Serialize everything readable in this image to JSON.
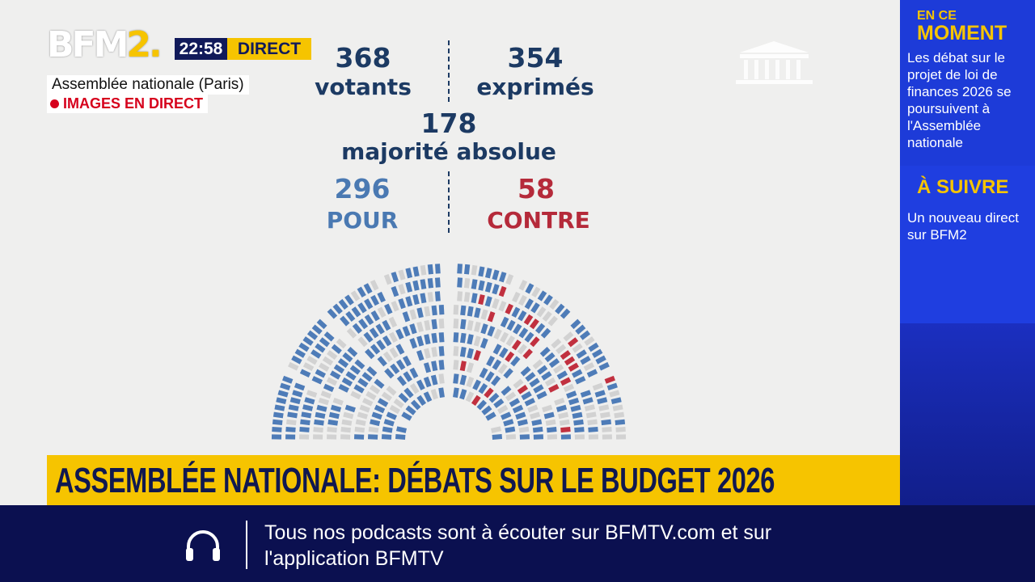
{
  "header": {
    "logo": "BFM",
    "logo_accent": "2.",
    "time": "22:58",
    "live": "DIRECT",
    "location": "Assemblée nationale (Paris)",
    "badge": "IMAGES EN DIRECT"
  },
  "vote": {
    "voters": {
      "number": 368,
      "label": "votants"
    },
    "expressed": {
      "number": 354,
      "label": "exprimés"
    },
    "majority": {
      "number": 178,
      "label": "majorité absolue"
    },
    "for": {
      "number": 296,
      "label": "POUR"
    },
    "against": {
      "number": 58,
      "label": "CONTRE"
    }
  },
  "headline": "ASSEMBLÉE NATIONALE: DÉBATS SUR LE BUDGET 2026",
  "sidebar": {
    "now_title_1": "EN CE",
    "now_title_2": "MOMENT",
    "now_text": "Les débat sur le projet de loi de finances 2026 se poursuivent à l'Assemblée nationale",
    "next_title": "À SUIVRE",
    "next_text": "Un nouveau direct sur BFM2"
  },
  "ticker": "Tous nos podcasts sont à écouter sur BFMTV.com et sur l'application BFMTV"
}
